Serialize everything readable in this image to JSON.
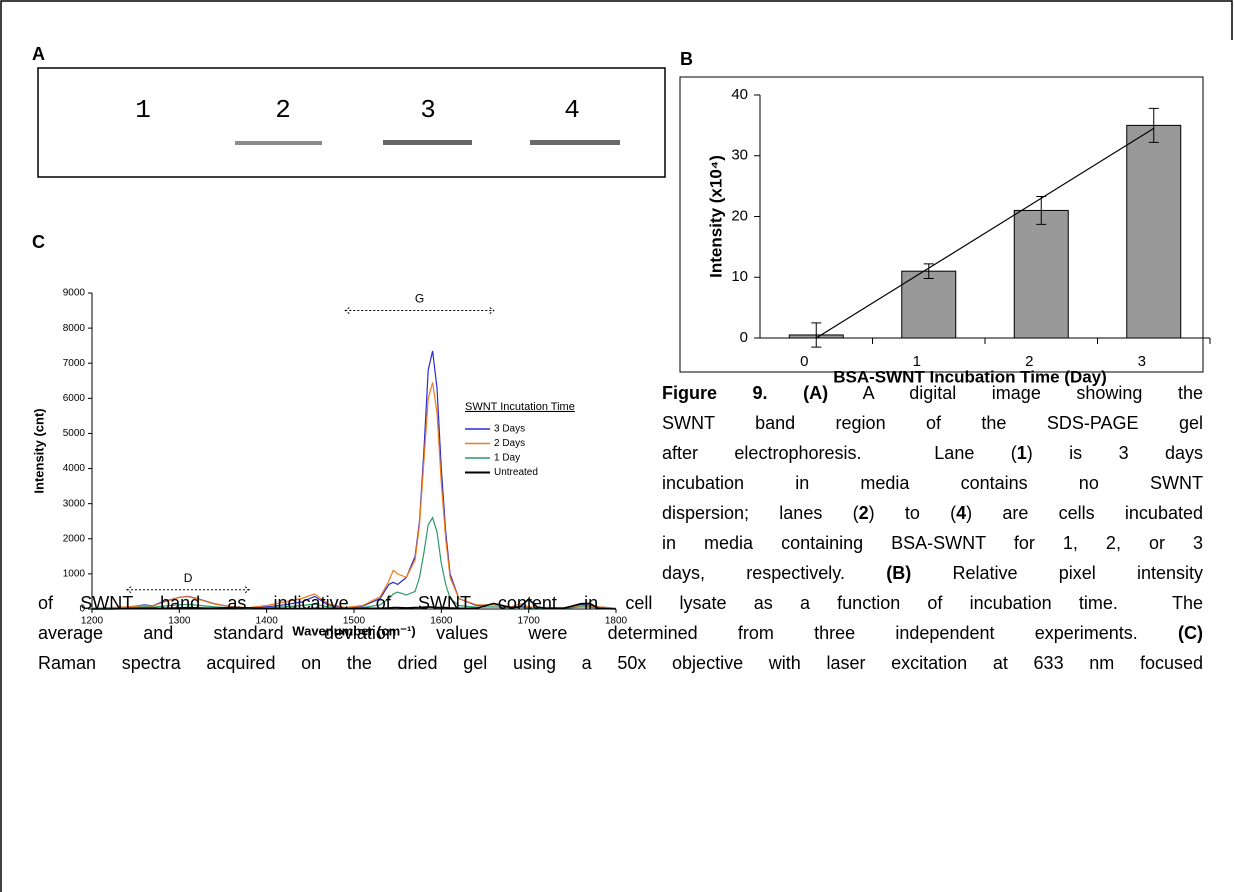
{
  "panel_labels": [
    "A",
    "B",
    "C"
  ],
  "gel": {
    "lanes": [
      "1",
      "2",
      "3",
      "4"
    ]
  },
  "chart_data": [
    {
      "type": "bar",
      "categories": [
        "0",
        "1",
        "2",
        "3"
      ],
      "values": [
        0.5,
        11,
        21,
        35
      ],
      "errors": [
        2,
        1.2,
        2.3,
        2.8
      ],
      "trend": [
        0,
        34.5
      ],
      "color": "#999999",
      "ylim": [
        0,
        40
      ],
      "yticks": [
        0,
        10,
        20,
        30,
        40
      ],
      "y_label": "Intensity (x10⁴)",
      "x_label": "BSA-SWNT Incubation Time (Day)"
    },
    {
      "type": "line",
      "x": [
        1200,
        1220,
        1240,
        1260,
        1270,
        1280,
        1300,
        1310,
        1320,
        1340,
        1360,
        1380,
        1400,
        1420,
        1440,
        1455,
        1470,
        1490,
        1510,
        1530,
        1540,
        1545,
        1550,
        1560,
        1570,
        1575,
        1580,
        1585,
        1590,
        1595,
        1600,
        1605,
        1610,
        1620,
        1640,
        1660,
        1680,
        1690,
        1700,
        1710,
        1720,
        1740,
        1760,
        1770,
        1780,
        1800
      ],
      "series": [
        {
          "name": "3 Days",
          "color": "#2b2bd0",
          "values": [
            20,
            30,
            50,
            120,
            90,
            200,
            330,
            360,
            300,
            150,
            60,
            20,
            60,
            120,
            200,
            360,
            120,
            30,
            80,
            300,
            700,
            760,
            700,
            900,
            1500,
            2500,
            4500,
            6800,
            7350,
            6300,
            4000,
            2200,
            1000,
            300,
            100,
            120,
            40,
            80,
            30,
            30,
            30,
            30,
            120,
            100,
            60,
            20
          ]
        },
        {
          "name": "2 Days",
          "color": "#f07a1a",
          "values": [
            20,
            40,
            60,
            100,
            80,
            180,
            330,
            350,
            290,
            140,
            60,
            40,
            100,
            200,
            300,
            430,
            150,
            40,
            100,
            350,
            800,
            1100,
            1000,
            900,
            1400,
            2400,
            4200,
            6000,
            6450,
            5600,
            3600,
            2000,
            900,
            300,
            120,
            120,
            60,
            150,
            60,
            40,
            30,
            40,
            100,
            80,
            60,
            20
          ]
        },
        {
          "name": "1 Day",
          "color": "#2a9a6a",
          "values": [
            10,
            20,
            30,
            60,
            50,
            80,
            120,
            130,
            110,
            60,
            30,
            20,
            40,
            60,
            100,
            140,
            60,
            20,
            40,
            120,
            300,
            430,
            480,
            400,
            500,
            900,
            1600,
            2400,
            2600,
            2200,
            1300,
            700,
            300,
            100,
            50,
            60,
            30,
            50,
            30,
            20,
            20,
            20,
            60,
            50,
            30,
            10
          ]
        },
        {
          "name": "Untreated",
          "color": "#000000",
          "values": [
            0,
            0,
            10,
            20,
            20,
            20,
            30,
            40,
            30,
            20,
            40,
            30,
            10,
            10,
            10,
            20,
            10,
            10,
            20,
            20,
            30,
            40,
            40,
            30,
            40,
            40,
            50,
            60,
            50,
            40,
            40,
            40,
            30,
            20,
            20,
            160,
            40,
            60,
            280,
            50,
            20,
            20,
            150,
            160,
            20,
            0
          ]
        }
      ],
      "xlim": [
        1200,
        1800
      ],
      "xticks": [
        1200,
        1300,
        1400,
        1500,
        1600,
        1700,
        1800
      ],
      "ylim": [
        0,
        9000
      ],
      "yticks": [
        0,
        1000,
        2000,
        3000,
        4000,
        5000,
        6000,
        7000,
        8000,
        9000
      ],
      "y_label": "Intensity (cnt)",
      "x_label": "Wavenumber (cm⁻¹)",
      "legend_title": "SWNT Incutation Time",
      "annotations": [
        {
          "text": "D",
          "x": [
            1240,
            1380
          ],
          "y": 550
        },
        {
          "text": "G",
          "x": [
            1490,
            1660
          ],
          "y": 8500
        }
      ]
    }
  ],
  "caption": [
    [
      {
        "text": "Figure 9.",
        "bold": true
      },
      {
        "text": " (A)",
        "bold": true
      },
      {
        "text": " A digital image showing the",
        "bold": false
      }
    ],
    [
      {
        "text": "SWNT band region of the SDS-PAGE gel",
        "bold": false
      }
    ],
    [
      {
        "text": "after electrophoresis.  Lane (",
        "bold": false
      },
      {
        "text": "1",
        "bold": true
      },
      {
        "text": ") is 3 days",
        "bold": false
      }
    ],
    [
      {
        "text": "incubation in media contains no SWNT",
        "bold": false
      }
    ],
    [
      {
        "text": "dispersion; lanes (",
        "bold": false
      },
      {
        "text": "2",
        "bold": true
      },
      {
        "text": ") to (",
        "bold": false
      },
      {
        "text": "4",
        "bold": true
      },
      {
        "text": ") are cells incubated",
        "bold": false
      }
    ],
    [
      {
        "text": "in media containing BSA-SWNT for 1, 2, or 3",
        "bold": false
      }
    ],
    [
      {
        "text": "days, respectively. ",
        "bold": false
      },
      {
        "text": "(B)",
        "bold": true
      },
      {
        "text": " Relative pixel intensity",
        "bold": false
      }
    ],
    [
      {
        "text": "of SWNT band as indicative of SWNT content in cell lysate as a function of incubation time.  The",
        "bold": false
      }
    ],
    [
      {
        "text": "average and standard deviation values were determined from three independent experiments. ",
        "bold": false
      },
      {
        "text": "(C)",
        "bold": true
      }
    ],
    [
      {
        "text": "Raman spectra acquired on the dried gel using a 50x objective with laser excitation at 633 nm focused",
        "bold": false
      }
    ]
  ]
}
